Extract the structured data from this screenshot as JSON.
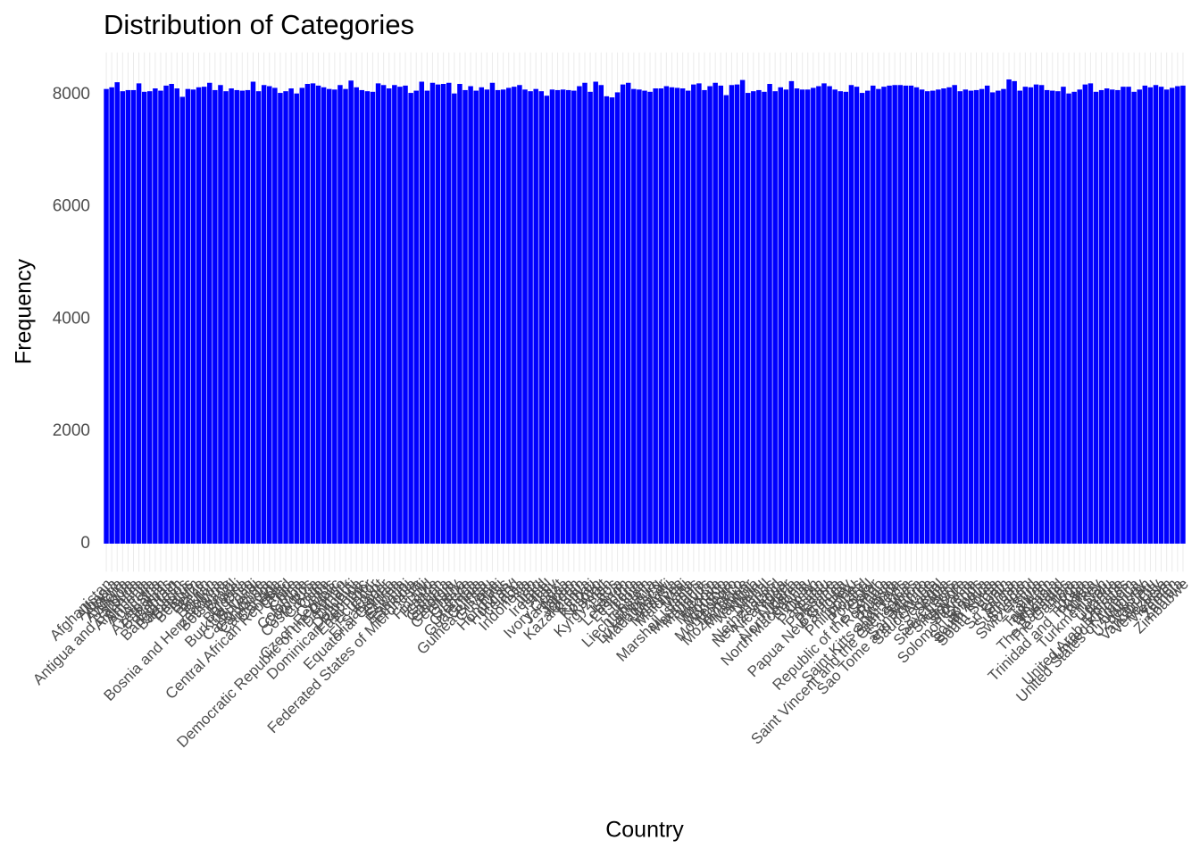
{
  "chart_data": {
    "type": "bar",
    "title": "Distribution of Categories",
    "x_label": "Country",
    "y_label": "Frequency",
    "categories": [
      "Afghanistan",
      "Albania",
      "Algeria",
      "Andorra",
      "Angola",
      "Antigua and Barbuda",
      "Argentina",
      "Armenia",
      "Australia",
      "Austria",
      "Azerbaijan",
      "Bahamas",
      "Bahrain",
      "Bangladesh",
      "Barbados",
      "Belarus",
      "Belgium",
      "Belize",
      "Benin",
      "Bhutan",
      "Bolivia",
      "Bosnia and Herzegovina",
      "Botswana",
      "Brazil",
      "Brunei",
      "Bulgaria",
      "Burkina Faso",
      "Burundi",
      "Cabo Verde",
      "Cambodia",
      "Cameroon",
      "Canada",
      "Central African Republic",
      "Chad",
      "Chile",
      "China",
      "Colombia",
      "Comoros",
      "Costa Rica",
      "Croatia",
      "Cuba",
      "Cyprus",
      "Czech Republic",
      "Democratic Republic of the Congo",
      "Denmark",
      "Djibouti",
      "Dominica",
      "Dominican Republic",
      "East Timor",
      "Ecuador",
      "Egypt",
      "El Salvador",
      "Equatorial Guinea",
      "Eritrea",
      "Estonia",
      "Eswatini",
      "Ethiopia",
      "Federated States of Micronesia",
      "Fiji",
      "Finland",
      "France",
      "Gabon",
      "Gambia",
      "Georgia",
      "Germany",
      "Ghana",
      "Greece",
      "Grenada",
      "Guatemala",
      "Guinea",
      "Guinea-Bissau",
      "Guyana",
      "Haiti",
      "Honduras",
      "Hungary",
      "Iceland",
      "India",
      "Indonesia",
      "Iran",
      "Iraq",
      "Ireland",
      "Israel",
      "Italy",
      "Ivory Coast",
      "Jamaica",
      "Japan",
      "Jordan",
      "Kazakhstan",
      "Kenya",
      "Kiribati",
      "Kosovo",
      "Kuwait",
      "Kyrgyzstan",
      "Laos",
      "Latvia",
      "Lebanon",
      "Lesotho",
      "Liberia",
      "Libya",
      "Liechtenstein",
      "Lithuania",
      "Luxembourg",
      "Madagascar",
      "Malawi",
      "Malaysia",
      "Maldives",
      "Mali",
      "Malta",
      "Marshall Islands",
      "Mauritania",
      "Mauritius",
      "Mexico",
      "Moldova",
      "Monaco",
      "Mongolia",
      "Montenegro",
      "Morocco",
      "Mozambique",
      "Myanmar",
      "Namibia",
      "Nauru",
      "Nepal",
      "Netherlands",
      "New Zealand",
      "Nicaragua",
      "Niger",
      "Nigeria",
      "North Korea",
      "North Macedonia",
      "Norway",
      "Oman",
      "Pakistan",
      "Palau",
      "Palestine",
      "Panama",
      "Papua New Guinea",
      "Paraguay",
      "Peru",
      "Philippines",
      "Poland",
      "Portugal",
      "Qatar",
      "Republic of the Congo",
      "Romania",
      "Russia",
      "Rwanda",
      "Saint Kitts and Nevis",
      "Saint Lucia",
      "Saint Vincent and the Grenadines",
      "Samoa",
      "San Marino",
      "Sao Tome and Principe",
      "Saudi Arabia",
      "Senegal",
      "Serbia",
      "Seychelles",
      "Sierra Leone",
      "Singapore",
      "Slovakia",
      "Slovenia",
      "Solomon Islands",
      "Somalia",
      "South Africa",
      "South Korea",
      "South Sudan",
      "Spain",
      "Sri Lanka",
      "Sudan",
      "Suriname",
      "Sweden",
      "Switzerland",
      "Syria",
      "Taiwan",
      "Tajikistan",
      "Tanzania",
      "Thailand",
      "The Bahamas",
      "The Gambia",
      "Togo",
      "Tonga",
      "Trinidad and Tobago",
      "Tunisia",
      "Turkey",
      "Turkmenistan",
      "Tuvalu",
      "Uganda",
      "Ukraine",
      "United Arab Emirates",
      "United Kingdom",
      "United States of America",
      "Uruguay",
      "Uzbekistan",
      "Vanuatu",
      "Vatican City",
      "Venezuela",
      "Vietnam",
      "Yemen",
      "Zambia",
      "Zimbabwe"
    ],
    "values": [
      8100,
      8130,
      8220,
      8060,
      8080,
      8080,
      8200,
      8050,
      8060,
      8110,
      8070,
      8160,
      8190,
      8110,
      7960,
      8100,
      8090,
      8130,
      8140,
      8210,
      8080,
      8170,
      8060,
      8110,
      8080,
      8070,
      8080,
      8230,
      8060,
      8170,
      8150,
      8120,
      8030,
      8060,
      8110,
      8020,
      8120,
      8190,
      8200,
      8160,
      8130,
      8100,
      8090,
      8170,
      8100,
      8250,
      8130,
      8080,
      8060,
      8050,
      8200,
      8170,
      8110,
      8170,
      8140,
      8160,
      8030,
      8070,
      8230,
      8070,
      8210,
      8180,
      8190,
      8210,
      8020,
      8190,
      8080,
      8150,
      8070,
      8130,
      8090,
      8210,
      8080,
      8090,
      8120,
      8140,
      8170,
      8090,
      8060,
      8100,
      8060,
      7980,
      8090,
      8080,
      8090,
      8080,
      8070,
      8150,
      8210,
      8050,
      8230,
      8170,
      7970,
      7950,
      8040,
      8180,
      8210,
      8100,
      8090,
      8070,
      8050,
      8110,
      8110,
      8150,
      8130,
      8120,
      8110,
      8070,
      8180,
      8200,
      8080,
      8150,
      8210,
      8160,
      7990,
      8170,
      8180,
      8260,
      8030,
      8060,
      8080,
      8050,
      8190,
      8060,
      8130,
      8090,
      8240,
      8110,
      8090,
      8090,
      8120,
      8150,
      8200,
      8150,
      8090,
      8060,
      8050,
      8170,
      8140,
      8030,
      8070,
      8160,
      8100,
      8140,
      8160,
      8170,
      8170,
      8160,
      8160,
      8130,
      8090,
      8060,
      8070,
      8090,
      8110,
      8130,
      8170,
      8060,
      8090,
      8070,
      8080,
      8100,
      8160,
      8040,
      8070,
      8100,
      8270,
      8240,
      8070,
      8140,
      8130,
      8180,
      8170,
      8080,
      8070,
      8060,
      8140,
      8020,
      8050,
      8090,
      8180,
      8200,
      8050,
      8080,
      8110,
      8090,
      8080,
      8140,
      8140,
      8050,
      8090,
      8160,
      8130,
      8170,
      8140,
      8090,
      8120,
      8150,
      8160
    ],
    "color": "#0000ff",
    "ylim": [
      -500,
      8750
    ],
    "yticks": [
      0,
      2000,
      4000,
      6000,
      8000
    ],
    "grid": "x"
  }
}
